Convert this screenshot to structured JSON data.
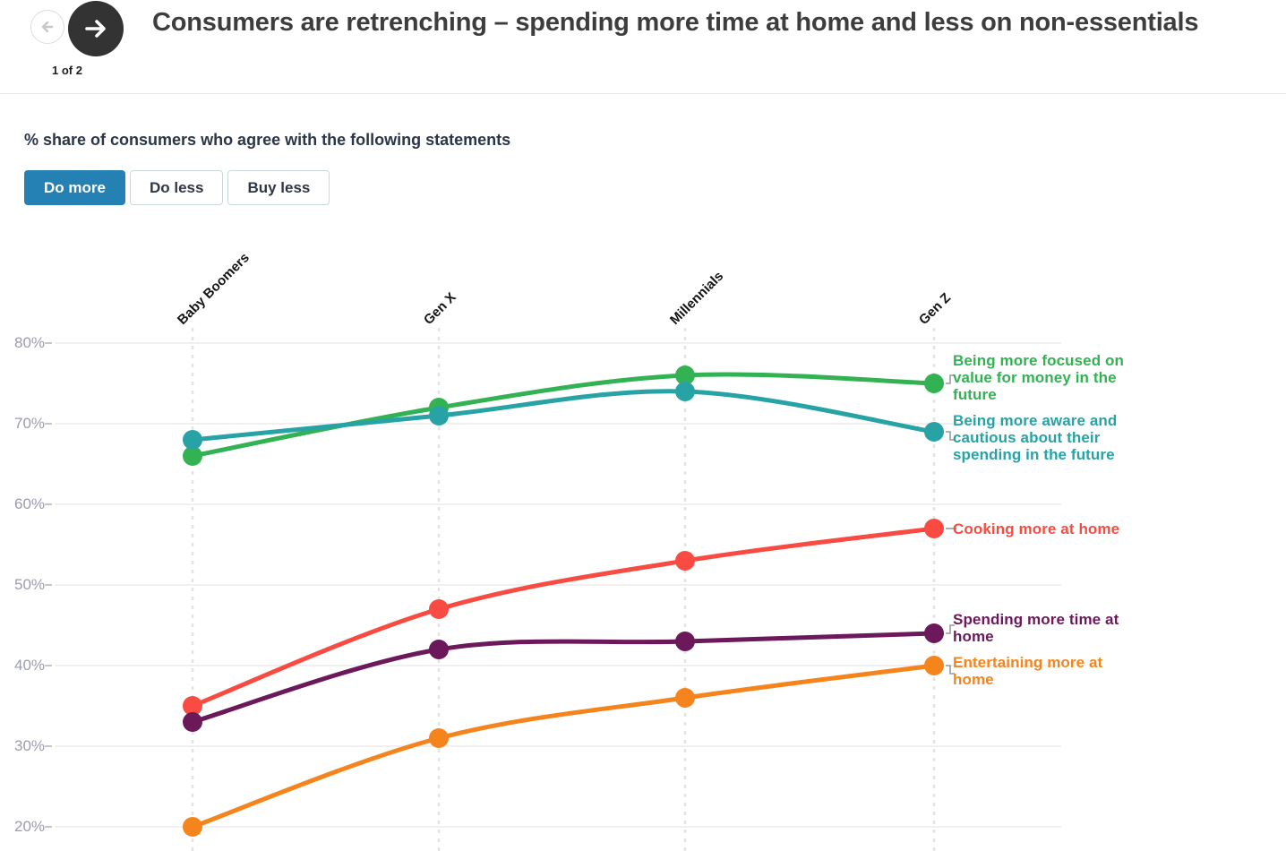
{
  "header": {
    "pagination": "1 of 2",
    "title": "Consumers are retrenching – spending more time at home and less on non-essentials"
  },
  "subtitle": "% share of consumers who agree with the following statements",
  "tabs": {
    "items": [
      {
        "label": "Do more",
        "selected": true
      },
      {
        "label": "Do less",
        "selected": false
      },
      {
        "label": "Buy less",
        "selected": false
      }
    ]
  },
  "colors": {
    "accent_blue": "#2581b4",
    "title_text": "#3d3d3d",
    "subtitle_text": "#2b3648",
    "axis_label": "#9b9caf",
    "grid_line": "#ececec",
    "grid_tick": "#c6c6c6",
    "dashed_line": "#e3e3e3",
    "leader_line": "#999999",
    "nav_button_dark": "#333333"
  },
  "chart_data": {
    "type": "line",
    "title": "% share of consumers who agree with the following statements",
    "categories": [
      "Baby Boomers",
      "Gen X",
      "Millennials",
      "Gen Z"
    ],
    "series": [
      {
        "name": "Being more focused on value for money in the future",
        "color": "#33b254",
        "values": [
          66,
          72,
          76,
          75
        ],
        "label_lines": [
          "Being more focused on",
          "value for money in the",
          "future"
        ]
      },
      {
        "name": "Being more aware and cautious about their spending in the future",
        "color": "#28a3a5",
        "values": [
          68,
          71,
          74,
          69
        ],
        "label_lines": [
          "Being more aware and",
          "cautious about their",
          "spending in the future"
        ]
      },
      {
        "name": "Cooking more at home",
        "color": "#fa4b42",
        "values": [
          35,
          47,
          53,
          57
        ],
        "label_lines": [
          "Cooking more at home"
        ]
      },
      {
        "name": "Spending more time at home",
        "color": "#6b195b",
        "values": [
          33,
          42,
          43,
          44
        ],
        "label_lines": [
          "Spending more time at",
          "home"
        ]
      },
      {
        "name": "Entertaining more at home",
        "color": "#f6841d",
        "values": [
          20,
          31,
          36,
          40
        ],
        "label_lines": [
          "Entertaining more at",
          "home"
        ]
      }
    ],
    "y_axis": {
      "ticks": [
        80,
        70,
        60,
        50,
        40,
        30,
        20
      ],
      "suffix": "%",
      "min": 20,
      "max": 80
    },
    "x_axis": {
      "label_rotation_deg": -45
    },
    "grid": true,
    "legend_position": "right"
  }
}
